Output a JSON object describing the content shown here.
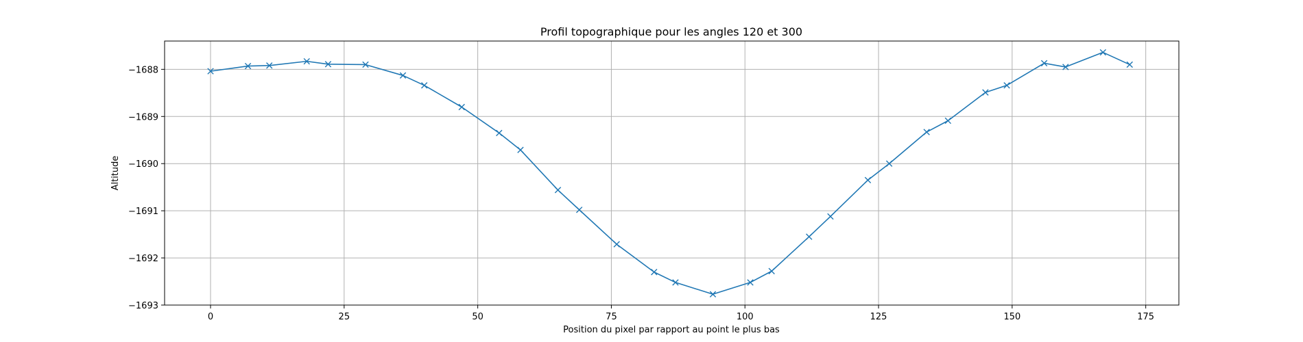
{
  "chart_data": {
    "type": "line",
    "title": "Profil topographique pour les angles 120 et 300",
    "xlabel": "Position du pixel par rapport au point le plus bas",
    "ylabel": "Altitude",
    "xlim": [
      -8.6,
      181.2
    ],
    "ylim": [
      -1693.0,
      -1687.4
    ],
    "xticks": [
      0,
      25,
      50,
      75,
      100,
      125,
      150,
      175
    ],
    "yticks": [
      -1693,
      -1692,
      -1691,
      -1690,
      -1689,
      -1688
    ],
    "xtick_labels": [
      "0",
      "25",
      "50",
      "75",
      "100",
      "125",
      "150",
      "175"
    ],
    "ytick_labels": [
      "−1693",
      "−1692",
      "−1691",
      "−1690",
      "−1689",
      "−1688"
    ],
    "grid": true,
    "marker": "x",
    "line_color": "#1f77b4",
    "series": [
      {
        "x": [
          0,
          7,
          11,
          18,
          22,
          29,
          36,
          40,
          47,
          54,
          58,
          65,
          69,
          76,
          83,
          87,
          94,
          101,
          105,
          112,
          116,
          123,
          127,
          134,
          138,
          145,
          149,
          156,
          160,
          167,
          172
        ],
        "y": [
          -1688.04,
          -1687.93,
          -1687.92,
          -1687.83,
          -1687.89,
          -1687.9,
          -1688.13,
          -1688.34,
          -1688.8,
          -1689.35,
          -1689.71,
          -1690.56,
          -1690.98,
          -1691.71,
          -1692.3,
          -1692.52,
          -1692.77,
          -1692.52,
          -1692.28,
          -1691.55,
          -1691.12,
          -1690.35,
          -1690.0,
          -1689.33,
          -1689.09,
          -1688.49,
          -1688.34,
          -1687.87,
          -1687.95,
          -1687.64,
          -1687.9
        ]
      }
    ]
  }
}
